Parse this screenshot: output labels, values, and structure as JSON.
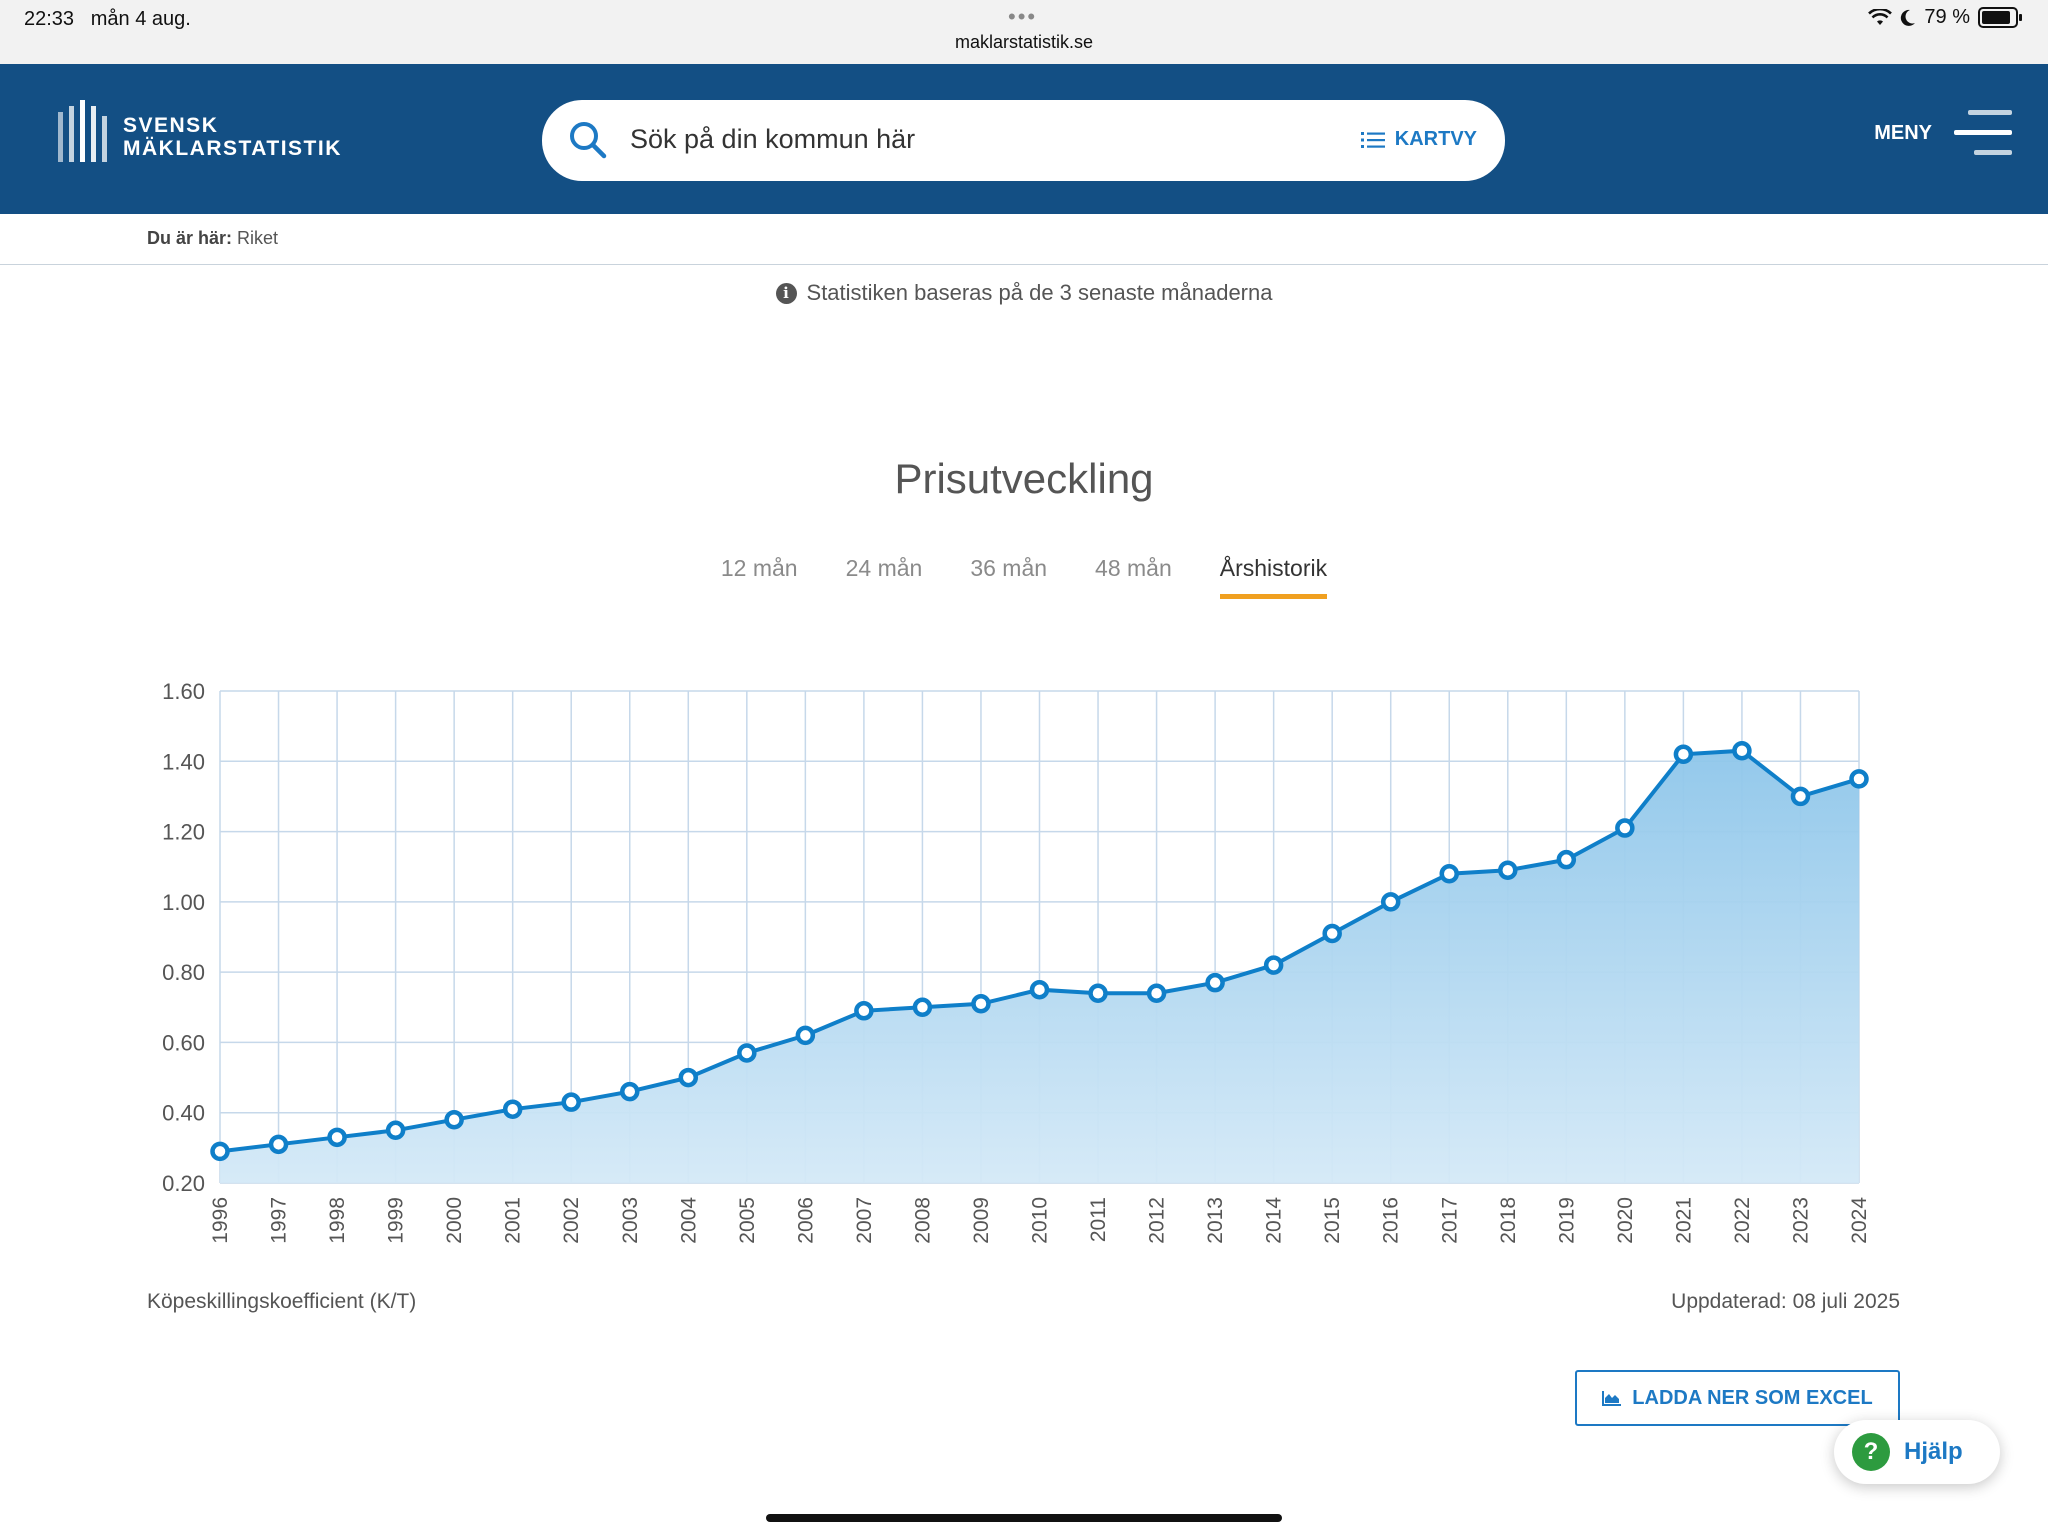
{
  "status_bar": {
    "time": "22:33",
    "date": "mån 4 aug.",
    "url": "maklarstatistik.se",
    "battery": "79 %",
    "battery_level": 0.79
  },
  "header": {
    "logo_line1": "SVENSK",
    "logo_line2": "MÄKLARSTATISTIK",
    "search_placeholder": "Sök på din kommun här",
    "kartvy_label": "KARTVY",
    "menu_label": "MENY"
  },
  "breadcrumb": {
    "prefix": "Du är här:",
    "current": "Riket"
  },
  "info_text": "Statistiken baseras på de 3 senaste månaderna",
  "section_title": "Prisutveckling",
  "tabs": [
    {
      "label": "12 mån",
      "active": false
    },
    {
      "label": "24 mån",
      "active": false
    },
    {
      "label": "36 mån",
      "active": false
    },
    {
      "label": "48 mån",
      "active": false
    },
    {
      "label": "Årshistorik",
      "active": true
    }
  ],
  "chart_data": {
    "type": "area",
    "x": [
      "1996",
      "1997",
      "1998",
      "1999",
      "2000",
      "2001",
      "2002",
      "2003",
      "2004",
      "2005",
      "2006",
      "2007",
      "2008",
      "2009",
      "2010",
      "2011",
      "2012",
      "2013",
      "2014",
      "2015",
      "2016",
      "2017",
      "2018",
      "2019",
      "2020",
      "2021",
      "2022",
      "2023",
      "2024"
    ],
    "series": [
      {
        "values": [
          0.29,
          0.31,
          0.33,
          0.35,
          0.38,
          0.41,
          0.43,
          0.46,
          0.5,
          0.57,
          0.62,
          0.69,
          0.7,
          0.71,
          0.75,
          0.74,
          0.74,
          0.77,
          0.82,
          0.91,
          1.0,
          1.08,
          1.09,
          1.12,
          1.21,
          1.42,
          1.43,
          1.3,
          1.35
        ]
      }
    ],
    "ylim": [
      0.2,
      1.6
    ],
    "yticks": [
      "0.20",
      "0.40",
      "0.60",
      "0.80",
      "1.00",
      "1.20",
      "1.40",
      "1.60"
    ],
    "grid": true,
    "line_color": "#0f7fc9",
    "fill_color": "#8ec6ea"
  },
  "chart_footer": {
    "ylabel": "Köpeskillingskoefficient (K/T)",
    "updated": "Uppdaterad: 08 juli 2025"
  },
  "buttons": {
    "excel": "LADDA NER SOM EXCEL",
    "help": "Hjälp"
  }
}
